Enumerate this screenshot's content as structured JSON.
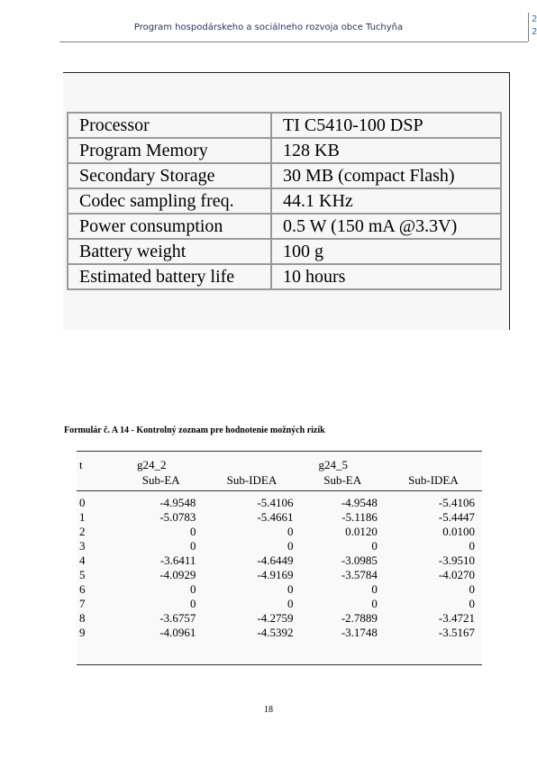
{
  "header": {
    "title": "Program hospodárskeho a sociálneho rozvoja obce Tuchyňa",
    "side_digits": [
      "2",
      "2"
    ]
  },
  "spec_table": {
    "rows": [
      {
        "label": "Processor",
        "value": "TI  C5410-100 DSP"
      },
      {
        "label": "Program Memory",
        "value": "128 KB"
      },
      {
        "label": "Secondary Storage",
        "value": "30 MB (compact Flash)"
      },
      {
        "label": "Codec sampling freq.",
        "value": "44.1 KHz"
      },
      {
        "label": "Power consumption",
        "value": "0.5 W (150 mA @3.3V)"
      },
      {
        "label": "Battery weight",
        "value": "100 g"
      },
      {
        "label": "Estimated battery life",
        "value": "10 hours"
      }
    ]
  },
  "formular_caption": "Formulár č. A 14 - Kontrolný zoznam pre hodnotenie možných rizík",
  "results_table": {
    "row_header": "t",
    "groups": [
      "g24_2",
      "g24_5"
    ],
    "subheaders": [
      "Sub-EA",
      "Sub-IDEA",
      "Sub-EA",
      "Sub-IDEA"
    ],
    "rows": [
      [
        "0",
        "-4.9548",
        "-5.4106",
        "-4.9548",
        "-5.4106"
      ],
      [
        "1",
        "-5.0783",
        "-5.4661",
        "-5.1186",
        "-5.4447"
      ],
      [
        "2",
        "0",
        "0",
        "0.0120",
        "0.0100"
      ],
      [
        "3",
        "0",
        "0",
        "0",
        "0"
      ],
      [
        "4",
        "-3.6411",
        "-4.6449",
        "-3.0985",
        "-3.9510"
      ],
      [
        "5",
        "-4.0929",
        "-4.9169",
        "-3.5784",
        "-4.0270"
      ],
      [
        "6",
        "0",
        "0",
        "0",
        "0"
      ],
      [
        "7",
        "0",
        "0",
        "0",
        "0"
      ],
      [
        "8",
        "-3.6757",
        "-4.2759",
        "-2.7889",
        "-3.4721"
      ],
      [
        "9",
        "-4.0961",
        "-4.5392",
        "-3.1748",
        "-3.5167"
      ]
    ]
  },
  "page_number": "18"
}
